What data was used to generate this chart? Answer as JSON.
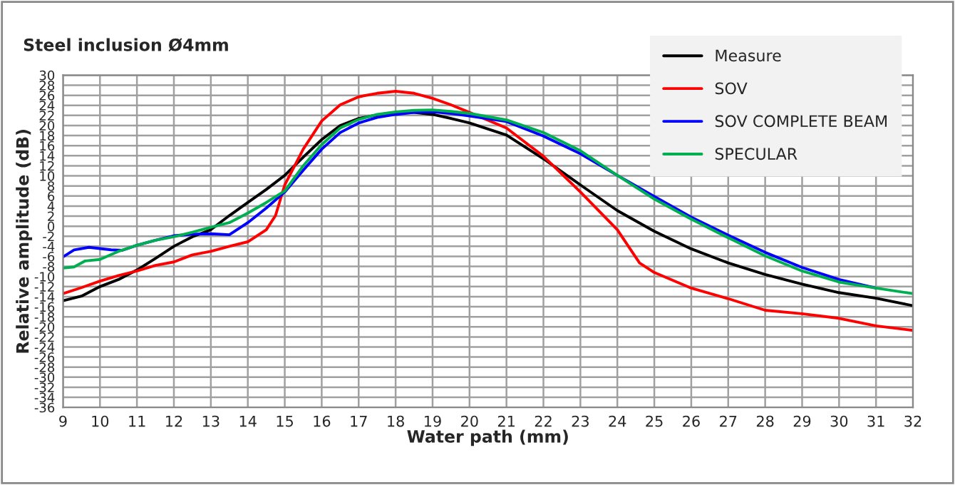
{
  "chart_data": {
    "type": "line",
    "title": "Steel inclusion Ø4mm",
    "xlabel": "Water path (mm)",
    "ylabel": "Relative amplitude (dB)",
    "xlim": [
      9,
      32
    ],
    "xticks": [
      9,
      10,
      11,
      12,
      13,
      14,
      15,
      16,
      17,
      18,
      19,
      20,
      21,
      22,
      23,
      24,
      25,
      26,
      27,
      28,
      29,
      30,
      31,
      32
    ],
    "ylim": [
      -36,
      30
    ],
    "yticks": [
      -36,
      -34,
      -32,
      -30,
      -28,
      -26,
      -24,
      -22,
      -20,
      -18,
      -16,
      -14,
      -12,
      -10,
      -8,
      -6,
      -4,
      -2,
      0,
      2,
      4,
      6,
      8,
      10,
      12,
      14,
      16,
      18,
      20,
      22,
      24,
      26,
      28,
      30
    ],
    "grid": true,
    "legend": "top right",
    "marker": "none",
    "line_style": "solid",
    "series": [
      {
        "name": "Measure",
        "color": "#000000",
        "x": [
          9,
          9.5,
          10,
          10.5,
          11,
          11.5,
          12,
          12.5,
          13,
          13.5,
          14,
          14.5,
          15,
          15.5,
          16,
          16.5,
          17,
          17.5,
          18,
          18.5,
          19,
          19.5,
          20,
          21,
          22,
          23,
          24,
          25,
          26,
          27,
          28,
          29,
          30,
          31,
          32
        ],
        "values": [
          -14.8,
          -13.9,
          -12.0,
          -10.6,
          -8.7,
          -6.4,
          -4.0,
          -2.1,
          -0.7,
          2.1,
          4.7,
          7.3,
          10.1,
          13.7,
          17.2,
          20.0,
          21.4,
          22.1,
          22.6,
          22.6,
          22.2,
          21.4,
          20.5,
          18.1,
          13.4,
          8.2,
          3.1,
          -1.0,
          -4.5,
          -7.3,
          -9.6,
          -11.5,
          -13.2,
          -14.3,
          -15.8
        ]
      },
      {
        "name": "SOV",
        "color": "#ff0000",
        "x": [
          9,
          9.5,
          10,
          10.5,
          11,
          11.5,
          12,
          12.5,
          13,
          13.5,
          14,
          14.5,
          14.75,
          15,
          15.5,
          16,
          16.5,
          17,
          17.5,
          18,
          18.5,
          19,
          19.5,
          20,
          21,
          22,
          23,
          24,
          24.6,
          25,
          26,
          27,
          28,
          29,
          30,
          31,
          32
        ],
        "values": [
          -13.4,
          -12.2,
          -10.9,
          -9.8,
          -8.9,
          -7.8,
          -7.1,
          -5.7,
          -5.0,
          -4.0,
          -3.1,
          -0.7,
          2.1,
          8.2,
          15.3,
          20.9,
          24.1,
          25.7,
          26.4,
          26.8,
          26.4,
          25.4,
          24.1,
          22.6,
          19.5,
          13.9,
          6.8,
          -0.7,
          -7.3,
          -9.2,
          -12.3,
          -14.4,
          -16.7,
          -17.4,
          -18.3,
          -19.8,
          -20.7
        ]
      },
      {
        "name": "SOV COMPLETE BEAM",
        "color": "#0000ff",
        "x": [
          9,
          9.3,
          9.7,
          10.3,
          10.6,
          11,
          11.5,
          12,
          12.5,
          13,
          13.5,
          14,
          14.5,
          15,
          15.5,
          16,
          16.5,
          17,
          17.5,
          18,
          18.5,
          19,
          19.5,
          20,
          21,
          22,
          23,
          24,
          25,
          26,
          27,
          28,
          29,
          30,
          31
        ],
        "values": [
          -6.1,
          -4.7,
          -4.2,
          -4.7,
          -4.8,
          -3.8,
          -2.8,
          -1.9,
          -1.6,
          -1.5,
          -1.7,
          0.7,
          3.6,
          6.8,
          11.1,
          15.3,
          18.6,
          20.5,
          21.6,
          22.2,
          22.6,
          22.7,
          22.4,
          21.9,
          20.8,
          17.9,
          14.4,
          10.1,
          5.9,
          1.8,
          -1.8,
          -5.2,
          -8.2,
          -10.6,
          -12.3
        ]
      },
      {
        "name": "SPECULAR",
        "color": "#00b050",
        "x": [
          9,
          9.3,
          9.6,
          10,
          10.5,
          11,
          11.5,
          12,
          12.5,
          12.8,
          13,
          13.5,
          14,
          14.5,
          15,
          15.5,
          16,
          16.5,
          17,
          17.5,
          18,
          18.5,
          19,
          19.5,
          20,
          21,
          22,
          23,
          24,
          25,
          26,
          27,
          28,
          29,
          30,
          31,
          32
        ],
        "values": [
          -8.3,
          -8.1,
          -6.9,
          -6.6,
          -5.0,
          -3.8,
          -2.8,
          -2.1,
          -1.2,
          -0.6,
          -0.2,
          0.7,
          2.6,
          4.7,
          7.0,
          12.0,
          16.2,
          19.5,
          21.2,
          22.2,
          22.7,
          23.0,
          23.1,
          22.8,
          22.4,
          21.1,
          18.6,
          15.0,
          10.1,
          5.4,
          1.4,
          -2.3,
          -5.9,
          -8.9,
          -11.1,
          -12.3,
          -13.4
        ]
      }
    ]
  }
}
